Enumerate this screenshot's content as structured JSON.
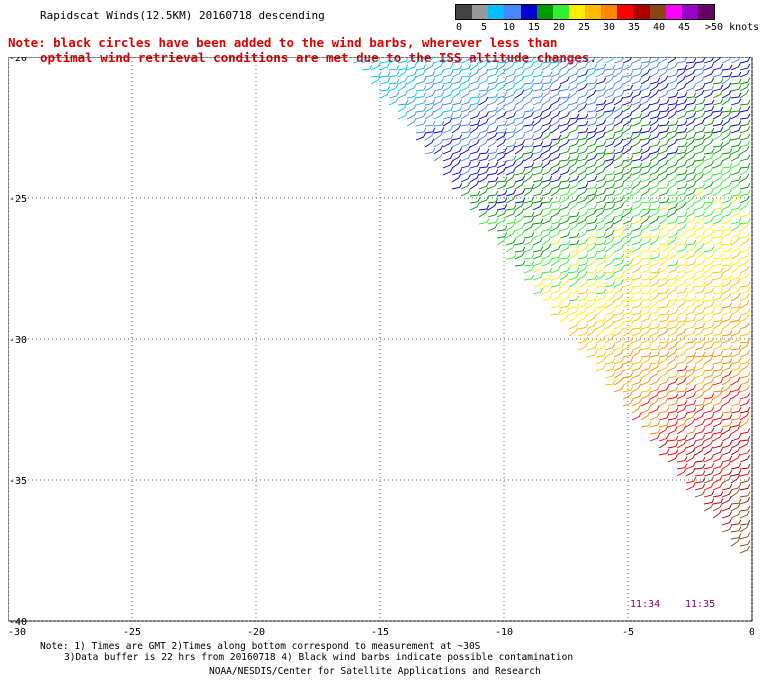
{
  "header": {
    "title": "Rapidscat Winds(12.5KM) 20160718 descending",
    "note_line1": "Note: black circles have been added to the wind barbs, wherever less than",
    "note_line2": "optimal wind retrieval conditions are met due to the ISS altitude changes."
  },
  "legend": {
    "colors": [
      "#444444",
      "#999999",
      "#00bfff",
      "#4488ff",
      "#0000cc",
      "#009900",
      "#33ee33",
      "#ffee00",
      "#ffbb00",
      "#ff8800",
      "#ff0000",
      "#aa0000",
      "#8b4513",
      "#ff00ff",
      "#9900cc",
      "#660066"
    ],
    "labels": [
      {
        "text": "0",
        "pos": 0
      },
      {
        "text": "5",
        "pos": 1
      },
      {
        "text": "10",
        "pos": 2
      },
      {
        "text": "15",
        "pos": 3
      },
      {
        "text": "20",
        "pos": 4
      },
      {
        "text": "25",
        "pos": 5
      },
      {
        "text": "30",
        "pos": 6
      },
      {
        "text": "35",
        "pos": 7
      },
      {
        "text": "40",
        "pos": 8
      },
      {
        "text": "45",
        "pos": 9
      },
      {
        "text": ">50 knots",
        "pos": 10
      }
    ]
  },
  "map": {
    "lon_range": [
      -30,
      0
    ],
    "lat_range": [
      -40,
      -20
    ],
    "x_ticks": [
      {
        "value": -30,
        "label": "-30"
      },
      {
        "value": -25,
        "label": "-25"
      },
      {
        "value": -20,
        "label": "-20"
      },
      {
        "value": -15,
        "label": "-15"
      },
      {
        "value": -10,
        "label": "-10"
      },
      {
        "value": -5,
        "label": "-5"
      },
      {
        "value": 0,
        "label": "0"
      }
    ],
    "y_ticks": [
      {
        "value": -20,
        "label": "-20"
      },
      {
        "value": -25,
        "label": "-25"
      },
      {
        "value": -30,
        "label": "-30"
      },
      {
        "value": -35,
        "label": "-35"
      },
      {
        "value": -40,
        "label": "-40"
      }
    ],
    "times": [
      "11:34",
      "11:35"
    ]
  },
  "footer": {
    "line1": "Note: 1) Times are GMT 2)Times along bottom correspond to measurement at ~30S",
    "line2": "3)Data buffer is 22 hrs from 20160718 4) Black wind barbs indicate possible contamination",
    "line3": "NOAA/NESDIS/Center for Satellite Applications and Research"
  }
}
